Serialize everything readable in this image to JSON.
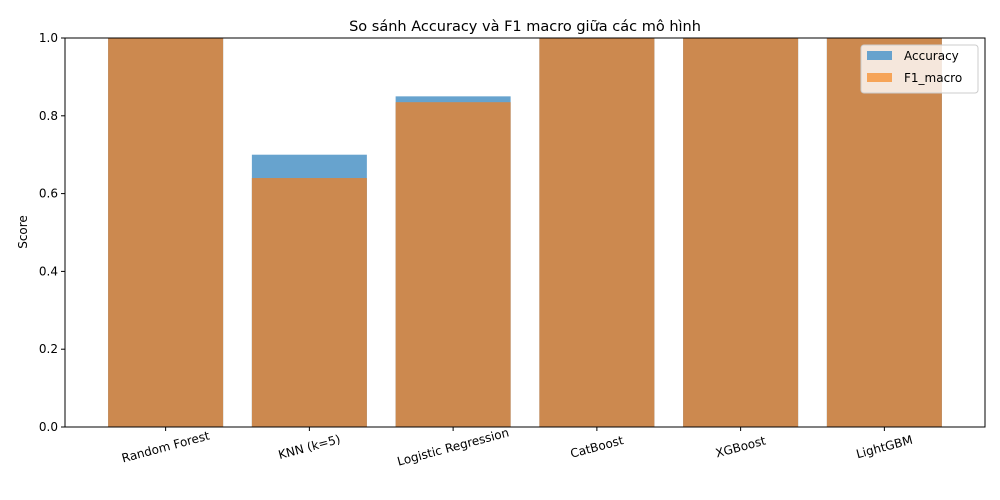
{
  "chart_data": {
    "type": "bar",
    "title": "So sánh Accuracy và F1 macro giữa các mô hình",
    "xlabel": "",
    "ylabel": "Score",
    "ylim": [
      0,
      1
    ],
    "yticks": [
      0.0,
      0.2,
      0.4,
      0.6,
      0.8,
      1.0
    ],
    "ytick_labels": [
      "0.0",
      "0.2",
      "0.4",
      "0.6",
      "0.8",
      "1.0"
    ],
    "categories": [
      "Random Forest",
      "KNN (k=5)",
      "Logistic Regression",
      "CatBoost",
      "XGBoost",
      "LightGBM"
    ],
    "overlaid": true,
    "grid": false,
    "legend_position": "top-right",
    "series": [
      {
        "name": "Accuracy",
        "color": "#5f9ecb",
        "values": [
          1.0,
          0.7,
          0.85,
          1.0,
          1.0,
          1.0
        ]
      },
      {
        "name": "F1_macro",
        "color": "#d0884a",
        "values": [
          1.0,
          0.64,
          0.835,
          1.0,
          1.0,
          1.0
        ]
      }
    ]
  }
}
